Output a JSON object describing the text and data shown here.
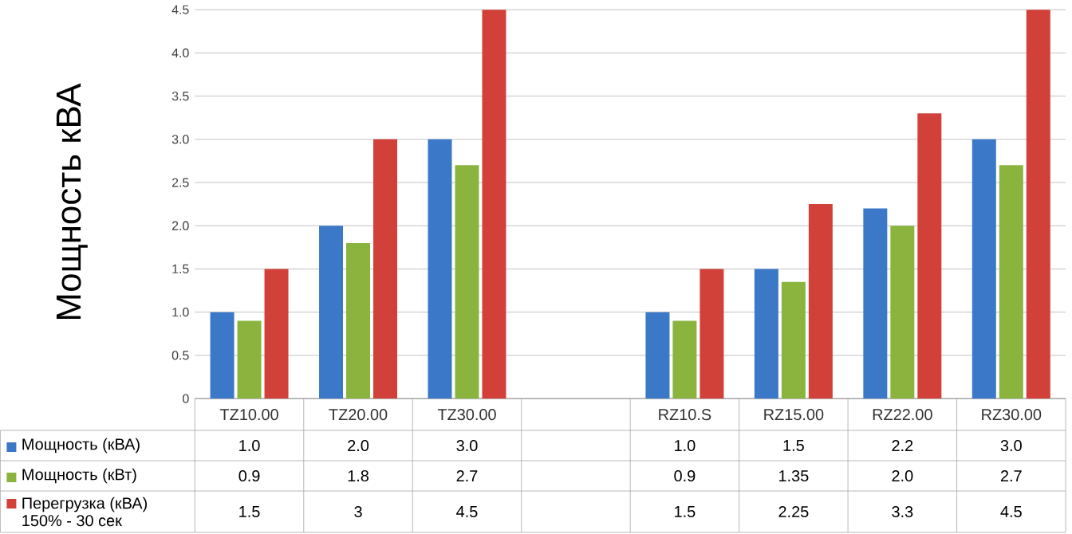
{
  "chart_data": {
    "type": "bar",
    "ylabel": "Мощность кВА",
    "categories": [
      "TZ10.00",
      "TZ20.00",
      "TZ30.00",
      null,
      "RZ10.S",
      "RZ15.00",
      "RZ22.00",
      "RZ30.00"
    ],
    "series": [
      {
        "name": "Мощность (кВА)",
        "color": "#3b78c8",
        "values": [
          1.0,
          2.0,
          3.0,
          null,
          1.0,
          1.5,
          2.2,
          3.0
        ],
        "value_labels": [
          "1.0",
          "2.0",
          "3.0",
          null,
          "1.0",
          "1.5",
          "2.2",
          "3.0"
        ]
      },
      {
        "name": "Мощность (кВт)",
        "color": "#8ab43e",
        "values": [
          0.9,
          1.8,
          2.7,
          null,
          0.9,
          1.35,
          2.0,
          2.7
        ],
        "value_labels": [
          "0.9",
          "1.8",
          "2.7",
          null,
          "0.9",
          "1.35",
          "2.0",
          "2.7"
        ]
      },
      {
        "name": "Перегрузка (кВА)\n150% - 30 сек",
        "color": "#d2403a",
        "values": [
          1.5,
          3,
          4.5,
          null,
          1.5,
          2.25,
          3.3,
          4.5
        ],
        "value_labels": [
          "1.5",
          "3",
          "4.5",
          null,
          "1.5",
          "2.25",
          "3.3",
          "4.5"
        ]
      }
    ],
    "ylim": [
      0,
      4.5
    ],
    "yticks": [
      0,
      {
        "value": 0.5,
        "label": "0.5"
      },
      {
        "value": 1,
        "label": "1.0"
      },
      {
        "value": 1.5,
        "label": "1.5"
      },
      {
        "value": 2,
        "label": "2.0"
      },
      {
        "value": 2.5,
        "label": "2.5"
      },
      {
        "value": 3,
        "label": "3.0"
      },
      {
        "value": 3.5,
        "label": "3.5"
      },
      {
        "value": 4,
        "label": "4.0"
      },
      {
        "value": 4.5,
        "label": "4.5"
      }
    ],
    "grid": "y",
    "legend": "bottom"
  }
}
